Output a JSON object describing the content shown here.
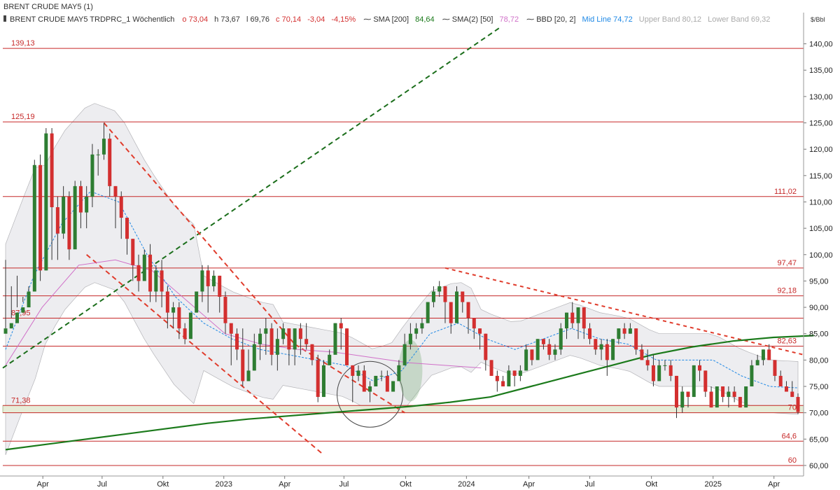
{
  "header": {
    "symbol": "BRENT CRUDE MAY5 (1)",
    "instrument": "BRENT CRUDE MAY5 TRDPRC_1 Wöchentlich",
    "open": "o 73,04",
    "high": "h 73,67",
    "low": "l 69,76",
    "close": "c 70,14",
    "change": "-3,04",
    "change_pct": "-4,15%",
    "sma200_label": "SMA [200]",
    "sma200_value": "84,64",
    "sma2_label": "SMA(2) [50]",
    "sma2_value": "78,72",
    "bbd_label": "BBD [20, 2]",
    "mid_line": "Mid Line 74,72",
    "upper_band": "Upper Band 80,12",
    "lower_band": "Lower Band 69,32"
  },
  "colors": {
    "up": "#2e7d32",
    "down": "#d32f2f",
    "sma200": "#1b7a1b",
    "sma50": "#d070c8",
    "mid": "#1e88e5",
    "band_fill": "#ededf0",
    "band_edge": "#b4b4b8",
    "level": "#c62828",
    "resistance": "#e03c2c",
    "support_trend": "#1b6e1b"
  },
  "chart_data": {
    "type": "candlestick",
    "unit": "$/Bbl",
    "ylim": [
      58,
      143
    ],
    "y_ticks": [
      "140,00",
      "135,00",
      "130,00",
      "125,00",
      "120,00",
      "115,00",
      "110,00",
      "105,00",
      "100,00",
      "95,00",
      "90,00",
      "85,00",
      "80,00",
      "75,00",
      "70,00",
      "65,00",
      "60,00"
    ],
    "x_ticks": [
      "Apr",
      "Jul",
      "Okt",
      "2023",
      "Apr",
      "Jul",
      "Okt",
      "2024",
      "Apr",
      "Jul",
      "Okt",
      "2025",
      "Apr"
    ],
    "levels": [
      {
        "value": 139.13,
        "label": "139,13",
        "side": "left"
      },
      {
        "value": 125.19,
        "label": "125,19",
        "side": "left"
      },
      {
        "value": 111.02,
        "label": "111,02",
        "side": "right"
      },
      {
        "value": 97.47,
        "label": "97,47",
        "side": "right"
      },
      {
        "value": 92.18,
        "label": "92,18",
        "side": "right"
      },
      {
        "value": 87.95,
        "label": "87,95",
        "side": "left"
      },
      {
        "value": 82.63,
        "label": "82,63",
        "side": "right"
      },
      {
        "value": 71.38,
        "label": "71,38",
        "side": "left"
      },
      {
        "value": 70,
        "label": "70",
        "side": "right"
      },
      {
        "value": 64.6,
        "label": "64,6",
        "side": "right"
      },
      {
        "value": 60,
        "label": "60",
        "side": "right"
      }
    ],
    "support_zone": [
      70,
      71.38
    ],
    "series": [
      {
        "name": "SMA [200]",
        "values": [
          63,
          64,
          65,
          66,
          67,
          68,
          68.8,
          69.4,
          70,
          70.6,
          71.2,
          72,
          73,
          75,
          77,
          79,
          81,
          82.5,
          83.6,
          84.3,
          84.64
        ]
      },
      {
        "name": "SMA(2) [50]",
        "values": [
          79,
          90,
          98,
          99,
          97,
          91,
          85,
          83,
          82,
          81.5,
          80.5,
          79.5,
          79,
          78.5
        ]
      },
      {
        "name": "Mid Line",
        "values": [
          82,
          96,
          106,
          112,
          110,
          100,
          92,
          87,
          84,
          82,
          81,
          80,
          79,
          76,
          78,
          85,
          87,
          84,
          82,
          84,
          86,
          84,
          83,
          80,
          80,
          80,
          77,
          75,
          74.72
        ]
      }
    ],
    "candles": [
      [
        85,
        86,
        86,
        99
      ],
      [
        86,
        87,
        88,
        94
      ],
      [
        87,
        89,
        90,
        96
      ],
      [
        89,
        90,
        91,
        92
      ],
      [
        90,
        93,
        94,
        91
      ],
      [
        93,
        117,
        118,
        98
      ],
      [
        117,
        97,
        119,
        95
      ],
      [
        97,
        123,
        124,
        97
      ],
      [
        123,
        109,
        124,
        99
      ],
      [
        109,
        104,
        111,
        99
      ],
      [
        104,
        111,
        113,
        103
      ],
      [
        111,
        101,
        112,
        99
      ],
      [
        101,
        113,
        114,
        108
      ],
      [
        113,
        108,
        114,
        105
      ],
      [
        108,
        111,
        113,
        105
      ],
      [
        111,
        119,
        121,
        109
      ],
      [
        119,
        119,
        120,
        115
      ],
      [
        119,
        122,
        125,
        118
      ],
      [
        122,
        113,
        123,
        111
      ],
      [
        113,
        111,
        113,
        105
      ],
      [
        111,
        107,
        112,
        103
      ],
      [
        107,
        103,
        107,
        100
      ],
      [
        103,
        98,
        103,
        95
      ],
      [
        98,
        95,
        100,
        93
      ],
      [
        95,
        100,
        101,
        96
      ],
      [
        100,
        93,
        102,
        91
      ],
      [
        93,
        97,
        98,
        91
      ],
      [
        97,
        93,
        99,
        90
      ],
      [
        93,
        89,
        94,
        86
      ],
      [
        89,
        90,
        91,
        86
      ],
      [
        90,
        86,
        91,
        84
      ],
      [
        86,
        84,
        87,
        83
      ],
      [
        84,
        89,
        89,
        86
      ],
      [
        89,
        93,
        93,
        89
      ],
      [
        93,
        97,
        98,
        91
      ],
      [
        97,
        94,
        98,
        89
      ],
      [
        94,
        96,
        97,
        93
      ],
      [
        96,
        92,
        96,
        89
      ],
      [
        92,
        87,
        93,
        85
      ],
      [
        87,
        85,
        86,
        79
      ],
      [
        85,
        82,
        86,
        80
      ],
      [
        82,
        76,
        86,
        75
      ],
      [
        76,
        78,
        82,
        76
      ],
      [
        78,
        83,
        85,
        78
      ],
      [
        83,
        85,
        86,
        80
      ],
      [
        85,
        86,
        88,
        81
      ],
      [
        86,
        81,
        87,
        79
      ],
      [
        81,
        84,
        86,
        78
      ],
      [
        84,
        86,
        87,
        83
      ],
      [
        86,
        82,
        86,
        79
      ],
      [
        82,
        86,
        86,
        79
      ],
      [
        86,
        84,
        87,
        81
      ],
      [
        84,
        83,
        87,
        82
      ],
      [
        83,
        80,
        83,
        79
      ],
      [
        80,
        73,
        81,
        72
      ],
      [
        73,
        79,
        80,
        73
      ],
      [
        79,
        81,
        82,
        80
      ],
      [
        81,
        87,
        87,
        82
      ],
      [
        87,
        86,
        88,
        82
      ],
      [
        86,
        79,
        86,
        79
      ],
      [
        79,
        77,
        79,
        72
      ],
      [
        77,
        78,
        79,
        76
      ],
      [
        78,
        74,
        79,
        75
      ],
      [
        74,
        75,
        76,
        72
      ],
      [
        75,
        77,
        77,
        75
      ],
      [
        77,
        77,
        78,
        76
      ],
      [
        77,
        74,
        78,
        74
      ],
      [
        74,
        76,
        76,
        74
      ],
      [
        76,
        79,
        80,
        77
      ],
      [
        79,
        83,
        85,
        79
      ],
      [
        83,
        85,
        87,
        82
      ],
      [
        85,
        86,
        87,
        84
      ],
      [
        86,
        87,
        88,
        85
      ],
      [
        87,
        91,
        91,
        87
      ],
      [
        91,
        93,
        94,
        90
      ],
      [
        93,
        94,
        95,
        92
      ],
      [
        94,
        91,
        93,
        87
      ],
      [
        91,
        87,
        91,
        85
      ],
      [
        87,
        93,
        94,
        87
      ],
      [
        93,
        91,
        93,
        89
      ],
      [
        91,
        88,
        91,
        85
      ],
      [
        88,
        86,
        88,
        84
      ],
      [
        86,
        85,
        86,
        82
      ],
      [
        85,
        80,
        85,
        78
      ],
      [
        80,
        77,
        80,
        77
      ],
      [
        77,
        76,
        78,
        74
      ],
      [
        76,
        75,
        77,
        75
      ],
      [
        75,
        78,
        79,
        76
      ],
      [
        78,
        77,
        78,
        75
      ],
      [
        77,
        78,
        79,
        76
      ],
      [
        78,
        82,
        83,
        78
      ],
      [
        82,
        80,
        82,
        79
      ],
      [
        80,
        84,
        84,
        80
      ],
      [
        84,
        83,
        84,
        82
      ],
      [
        83,
        81,
        84,
        80
      ],
      [
        81,
        82,
        83,
        80
      ],
      [
        82,
        86,
        87,
        81
      ],
      [
        86,
        89,
        89,
        84
      ],
      [
        89,
        87,
        91,
        86
      ],
      [
        87,
        90,
        90,
        84
      ],
      [
        90,
        86,
        90,
        84
      ],
      [
        86,
        84,
        87,
        83
      ],
      [
        84,
        82,
        84,
        81
      ],
      [
        82,
        83,
        84,
        80
      ],
      [
        83,
        80,
        84,
        77
      ],
      [
        80,
        84,
        84,
        80
      ],
      [
        84,
        86,
        86,
        83
      ],
      [
        86,
        85,
        87,
        84
      ],
      [
        85,
        86,
        87,
        85
      ],
      [
        86,
        82,
        86,
        81
      ],
      [
        82,
        80,
        83,
        80
      ],
      [
        80,
        79,
        82,
        78
      ],
      [
        79,
        76,
        81,
        75
      ],
      [
        76,
        79,
        80,
        76
      ],
      [
        79,
        79,
        80,
        78
      ],
      [
        79,
        77,
        80,
        76
      ],
      [
        77,
        71,
        77,
        69
      ],
      [
        71,
        74,
        75,
        70
      ],
      [
        74,
        73,
        74,
        71
      ],
      [
        73,
        79,
        79,
        73
      ],
      [
        79,
        78,
        80,
        76
      ],
      [
        78,
        74,
        78,
        73
      ],
      [
        74,
        71,
        75,
        71
      ],
      [
        71,
        75,
        75,
        71
      ],
      [
        75,
        73,
        75,
        72
      ],
      [
        73,
        74,
        75,
        71
      ],
      [
        74,
        73,
        75,
        72
      ],
      [
        73,
        71,
        73,
        71
      ],
      [
        71,
        75,
        75,
        71
      ],
      [
        75,
        79,
        80,
        75
      ],
      [
        79,
        80,
        81,
        79
      ],
      [
        80,
        82,
        82,
        79
      ],
      [
        82,
        80,
        83,
        80
      ],
      [
        80,
        77,
        80,
        76
      ],
      [
        77,
        75,
        78,
        75
      ],
      [
        75,
        74,
        76,
        74
      ],
      [
        74,
        73,
        76,
        73
      ],
      [
        73,
        70.14,
        73.67,
        69.76
      ]
    ]
  }
}
